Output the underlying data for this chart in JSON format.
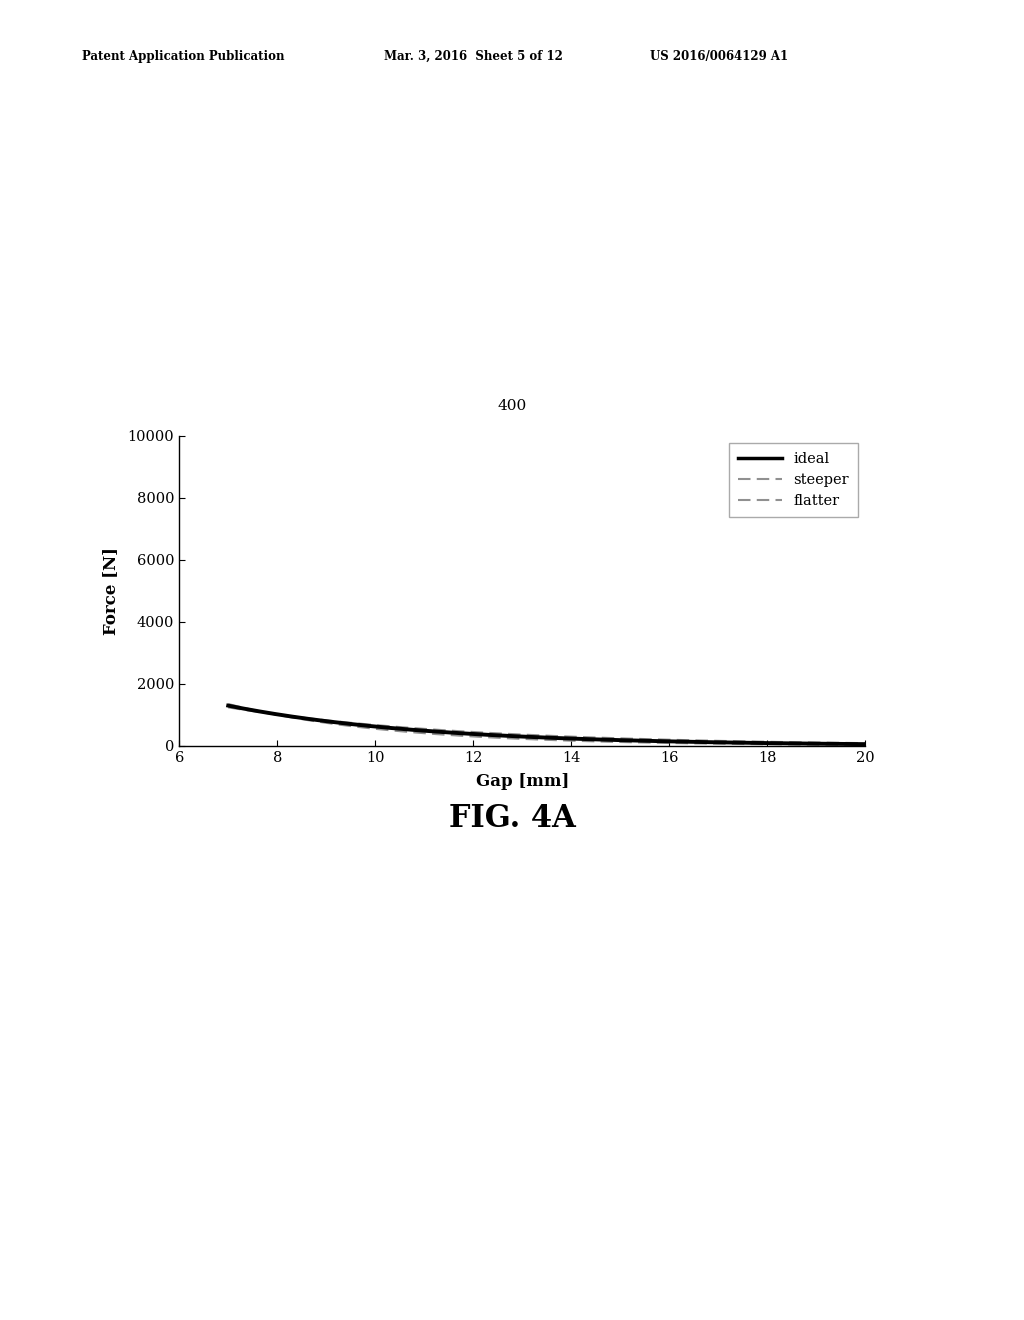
{
  "title_label": "400",
  "xlabel": "Gap [mm]",
  "ylabel": "Force [N]",
  "fig_label": "FIG. 4A",
  "header_left": "Patent Application Publication",
  "header_mid": "Mar. 3, 2016  Sheet 5 of 12",
  "header_right": "US 2016/0064129 A1",
  "xlim": [
    6,
    20
  ],
  "ylim": [
    0,
    10000
  ],
  "xticks": [
    6,
    8,
    10,
    12,
    14,
    16,
    18,
    20
  ],
  "yticks": [
    0,
    2000,
    4000,
    6000,
    8000,
    10000
  ],
  "ideal_color": "#000000",
  "dashed_color": "#909090",
  "background_color": "#ffffff",
  "legend_labels": [
    "ideal",
    "steeper",
    "flatter"
  ],
  "ideal_A": 7200,
  "ideal_b": 0.245,
  "steeper_A": 11000,
  "steeper_b": 0.3,
  "flatter_A": 5200,
  "flatter_b": 0.205
}
